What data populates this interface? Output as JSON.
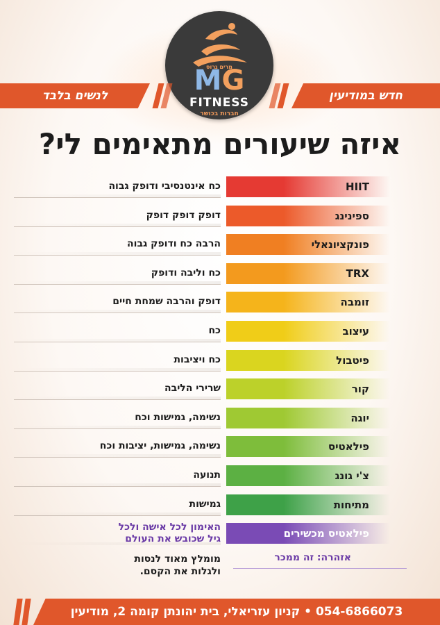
{
  "logo": {
    "tag_top": "מרים גרוס",
    "mg_m": "M",
    "mg_g": "G",
    "fitness": "FITNESS",
    "tag_bottom": "חברות בכושר",
    "icon": "runner-swoosh-icon"
  },
  "banners": {
    "right": "חדש במודיעין",
    "left": "לנשים בלבד"
  },
  "headline": "איזה שיעורים מתאימים לי?",
  "classes": [
    {
      "name": "HIIT",
      "desc": "כח אינטנסיבי ודופק גבוה",
      "color": "#e53a33"
    },
    {
      "name": "ספינינג",
      "desc": "דופק דופק דופק",
      "color": "#ec5a2a"
    },
    {
      "name": "פונקציונאלי",
      "desc": "הרבה כח ודופק גבוה",
      "color": "#f07f22"
    },
    {
      "name": "TRX",
      "desc": "כח וליבה ודופק",
      "color": "#f39a1e"
    },
    {
      "name": "זומבה",
      "desc": "דופק והרבה שמחת חיים",
      "color": "#f5b41b"
    },
    {
      "name": "עיצוב",
      "desc": "כח",
      "color": "#f0cd18"
    },
    {
      "name": "פיטבול",
      "desc": "כח ויציבות",
      "color": "#dad51f"
    },
    {
      "name": "קור",
      "desc": "שרירי הליבה",
      "color": "#bcd12a"
    },
    {
      "name": "יוגה",
      "desc": "נשימה, גמישות וכח",
      "color": "#9fc933"
    },
    {
      "name": "פילאטיס",
      "desc": "נשימה, גמישות, יציבות וכח",
      "color": "#7ebd3b"
    },
    {
      "name": "צ'י גונג",
      "desc": "תנועה",
      "color": "#5cb043"
    },
    {
      "name": "מתיחות",
      "desc": "גמישות",
      "color": "#3ea148"
    },
    {
      "name": "פילאטיס מכשירים",
      "desc_line1": "האימון לכל אישה ולכל",
      "desc_line2": "גיל שכובש את העולם",
      "color": "#7a4bb5"
    }
  ],
  "warning": "אזהרה: זה ממכר",
  "note_line1": "מומלץ מאוד לנסות",
  "note_line2": "ולגלות את הקסם.",
  "footer": "054-6866073 • קניון עזריאלי, בית יהונתן קומה 2, מודיעין"
}
